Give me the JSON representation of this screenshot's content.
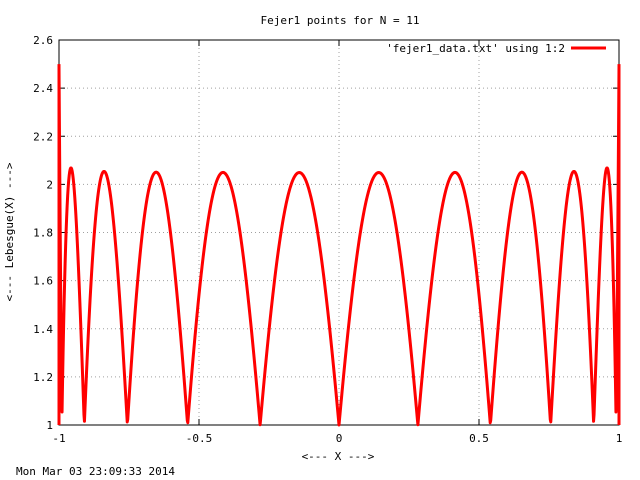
{
  "chart_data": {
    "type": "line",
    "title": "Fejer1 points for N = 11",
    "xlabel": "<--- X --->",
    "ylabel": "<--- Lebesgue(X) --->",
    "xlim": [
      -1,
      1
    ],
    "ylim": [
      1,
      2.6
    ],
    "grid": true,
    "legend_position": "top-right",
    "x_ticks": [
      -1,
      -0.5,
      0,
      0.5,
      1
    ],
    "x_tick_labels": [
      "-1",
      "-0.5",
      "0",
      "0.5",
      "1"
    ],
    "y_ticks": [
      1,
      1.2,
      1.4,
      1.6,
      1.8,
      2,
      2.2,
      2.4,
      2.6
    ],
    "y_tick_labels": [
      "1",
      "1.2",
      "1.4",
      "1.6",
      "1.8",
      "2",
      "2.2",
      "2.4",
      "2.6"
    ],
    "nodes": [
      -0.9898214,
      -0.909632,
      -0.7557495,
      -0.5406408,
      -0.2817325,
      0.0,
      0.2817325,
      0.5406408,
      0.7557495,
      0.909632,
      0.9898214
    ],
    "series": [
      {
        "name": "'fejer1_data.txt' using 1:2",
        "color": "#ff0000",
        "endpoint_values": {
          "x_minus_1": 2.5,
          "x_plus_1": 2.5
        },
        "peaks": [
          {
            "x": -0.97,
            "y": 2.07
          },
          {
            "x": -0.84,
            "y": 2.05
          },
          {
            "x": -0.65,
            "y": 2.05
          },
          {
            "x": -0.42,
            "y": 2.05
          },
          {
            "x": -0.15,
            "y": 2.05
          },
          {
            "x": 0.13,
            "y": 2.05
          },
          {
            "x": 0.41,
            "y": 2.05
          },
          {
            "x": 0.64,
            "y": 2.05
          },
          {
            "x": 0.83,
            "y": 2.05
          },
          {
            "x": 0.96,
            "y": 2.07
          }
        ]
      }
    ]
  },
  "timestamp": "Mon Mar 03 23:09:33 2014"
}
